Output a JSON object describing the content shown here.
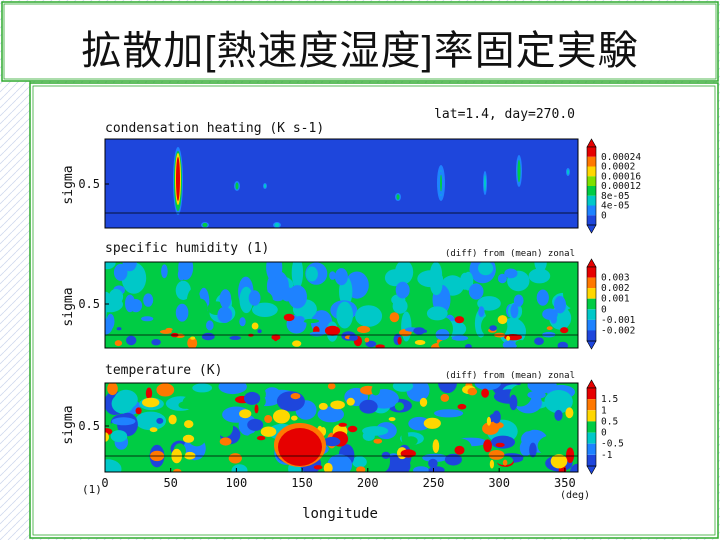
{
  "slide": {
    "title": "拡散加[熱速度湿度]率固定実験"
  },
  "figure": {
    "header": "lat=1.4, day=270.0",
    "xlabel": "longitude",
    "x_unit": "(deg)",
    "corner_label": "(1)",
    "x_ticks": [
      0,
      50,
      100,
      150,
      200,
      250,
      300,
      350
    ]
  },
  "chart_data": [
    {
      "type": "heatmap",
      "title": "condensation heating (K s-1)",
      "subtitle": "",
      "xlabel": "longitude",
      "ylabel": "sigma",
      "xlim": [
        0,
        360
      ],
      "y_ticks": [
        0.5
      ],
      "colorbar": [
        "0.00024",
        "0.0002",
        "0.00016",
        "0.00012",
        "8e-05",
        "4e-05",
        "0"
      ],
      "colorbar_colors": [
        "#e60000",
        "#ff7800",
        "#ffd700",
        "#7ee000",
        "#00cc44",
        "#00c8c8",
        "#1e82ff",
        "#1e46dc"
      ],
      "background_color": "#1e46dc",
      "features": [
        {
          "longitude": 52,
          "sigma_range": [
            0.15,
            0.95
          ],
          "peak": 0.00024
        },
        {
          "longitude": 100,
          "sigma_range": [
            0.5,
            0.6
          ],
          "peak": 5e-05
        },
        {
          "longitude": 253,
          "sigma_range": [
            0.3,
            0.85
          ],
          "peak": 8e-05
        },
        {
          "longitude": 317,
          "sigma_range": [
            0.3,
            0.85
          ],
          "peak": 5e-05
        }
      ]
    },
    {
      "type": "heatmap",
      "title": "specific humidity (1)",
      "subtitle": "(diff) from (mean) zonal",
      "xlabel": "longitude",
      "ylabel": "sigma",
      "xlim": [
        0,
        360
      ],
      "y_ticks": [
        0.5
      ],
      "colorbar": [
        "0.003",
        "0.002",
        "0.001",
        "0",
        "-0.001",
        "-0.002"
      ],
      "colorbar_colors": [
        "#e60000",
        "#ff7800",
        "#ffd700",
        "#00cc44",
        "#00c8c8",
        "#1e82ff",
        "#1e46dc"
      ],
      "background_color": "#00cc44"
    },
    {
      "type": "heatmap",
      "title": "temperature (K)",
      "subtitle": "(diff) from (mean) zonal",
      "xlabel": "longitude",
      "ylabel": "sigma",
      "xlim": [
        0,
        360
      ],
      "y_ticks": [
        0.5
      ],
      "colorbar": [
        "1.5",
        "1",
        "0.5",
        "0",
        "-0.5",
        "-1"
      ],
      "colorbar_colors": [
        "#e60000",
        "#ff7800",
        "#ffd700",
        "#00cc44",
        "#00c8c8",
        "#1e82ff",
        "#1e46dc"
      ],
      "background_color": "#00cc44",
      "features": [
        {
          "longitude": 150,
          "sigma_range": [
            0.05,
            0.35
          ],
          "peak": 1.5
        }
      ]
    }
  ]
}
